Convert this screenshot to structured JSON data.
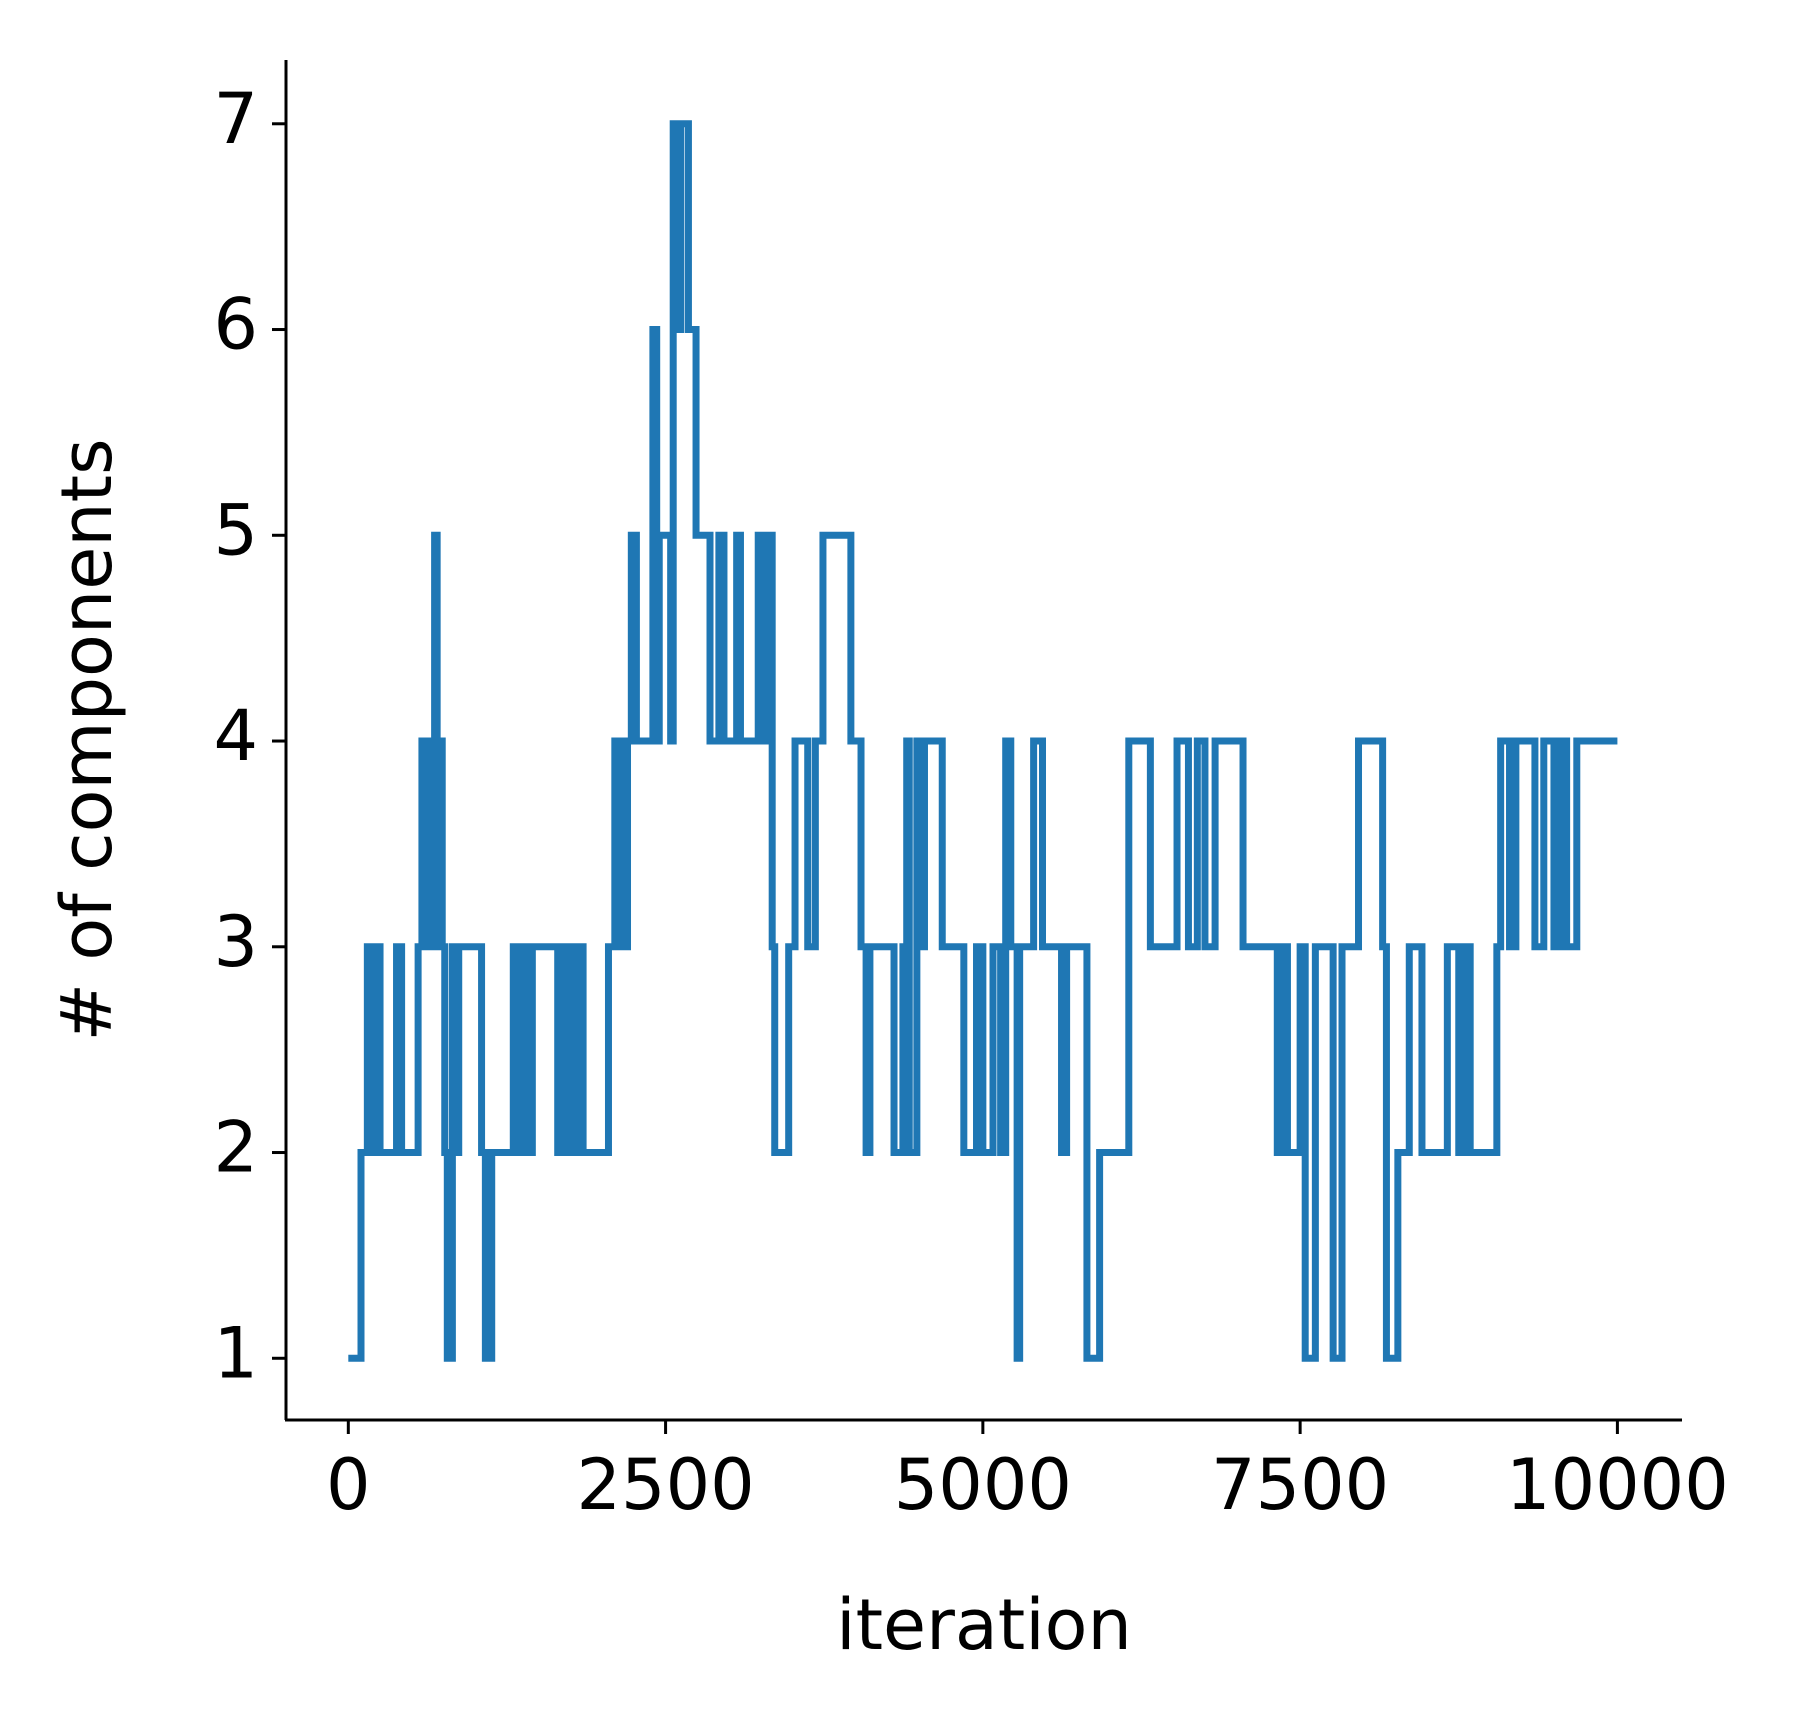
{
  "chart_data": {
    "type": "line",
    "step": "post",
    "xlabel": "iteration",
    "ylabel": "# of components",
    "color": "#1f77b4",
    "x": [
      0,
      100,
      150,
      200,
      230,
      250,
      380,
      420,
      550,
      580,
      600,
      630,
      660,
      680,
      700,
      720,
      740,
      760,
      780,
      820,
      850,
      870,
      1050,
      1080,
      1130,
      1300,
      1330,
      1370,
      1400,
      1450,
      1650,
      1680,
      1720,
      1770,
      1800,
      1820,
      1850,
      2050,
      2100,
      2150,
      2200,
      2230,
      2270,
      2400,
      2430,
      2450,
      2540,
      2560,
      2600,
      2620,
      2680,
      2740,
      2850,
      2920,
      2960,
      3060,
      3090,
      3230,
      3260,
      3310,
      3340,
      3360,
      3470,
      3520,
      3620,
      3680,
      3740,
      3960,
      4040,
      4080,
      4110,
      4300,
      4370,
      4400,
      4420,
      4480,
      4510,
      4540,
      4680,
      4850,
      4950,
      5000,
      5080,
      5140,
      5180,
      5220,
      5270,
      5290,
      5400,
      5470,
      5620,
      5660,
      5820,
      5920,
      6150,
      6320,
      6530,
      6620,
      6690,
      6750,
      6830,
      7050,
      7320,
      7360,
      7400,
      7500,
      7540,
      7620,
      7760,
      7830,
      7960,
      8150,
      8180,
      8270,
      8360,
      8460,
      8660,
      8750,
      8790,
      8840,
      9050,
      9080,
      9150,
      9200,
      9350,
      9420,
      9500,
      9550,
      9600,
      9680,
      10000
    ],
    "values": [
      1,
      2,
      3,
      2,
      3,
      2,
      3,
      2,
      3,
      4,
      3,
      4,
      3,
      5,
      3,
      4,
      3,
      2,
      1,
      3,
      2,
      3,
      2,
      1,
      2,
      3,
      2,
      3,
      2,
      3,
      2,
      3,
      2,
      3,
      2,
      3,
      2,
      3,
      4,
      3,
      4,
      5,
      4,
      6,
      4,
      5,
      4,
      7,
      6,
      7,
      6,
      5,
      4,
      5,
      4,
      5,
      4,
      5,
      4,
      5,
      3,
      2,
      3,
      4,
      3,
      4,
      5,
      4,
      3,
      2,
      3,
      2,
      3,
      4,
      2,
      4,
      3,
      4,
      3,
      2,
      3,
      2,
      3,
      2,
      4,
      3,
      1,
      3,
      4,
      3,
      2,
      3,
      1,
      2,
      4,
      3,
      4,
      3,
      4,
      3,
      4,
      3,
      2,
      3,
      2,
      3,
      1,
      3,
      1,
      3,
      4,
      3,
      1,
      2,
      3,
      2,
      3,
      2,
      3,
      2,
      3,
      4,
      3,
      4,
      3,
      4,
      3,
      4,
      3,
      4,
      4
    ],
    "xlim": [
      -491,
      10509
    ],
    "ylim": [
      0.7,
      7.31
    ],
    "xticks": [
      0,
      2500,
      5000,
      7500,
      10000
    ],
    "yticks": [
      1,
      2,
      3,
      4,
      5,
      6,
      7
    ]
  }
}
